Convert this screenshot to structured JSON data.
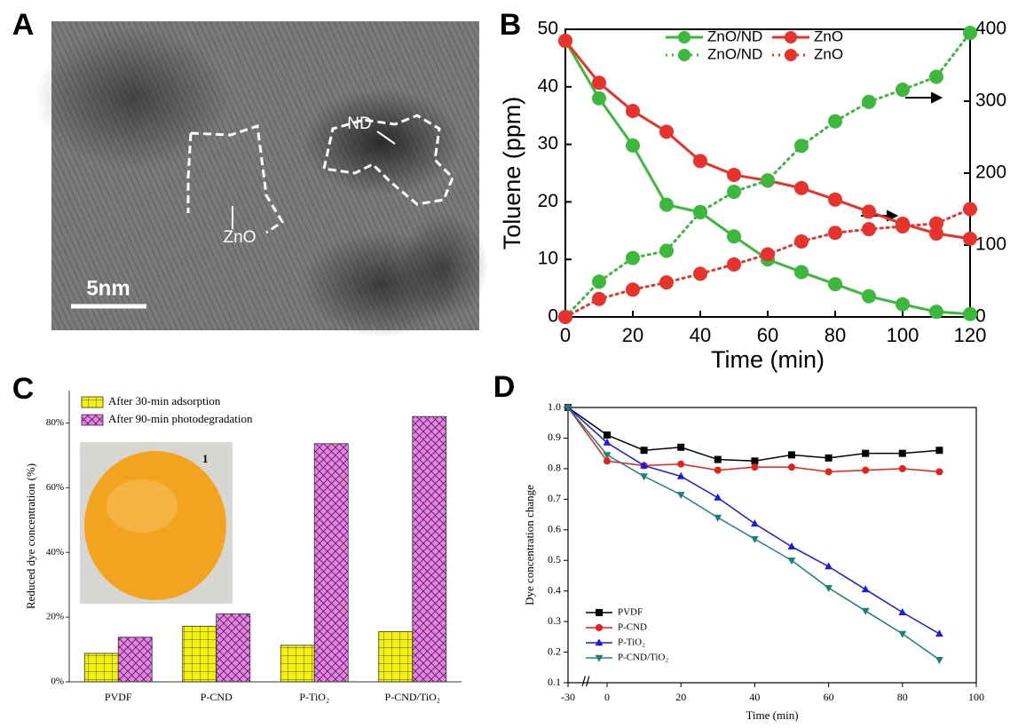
{
  "panel_labels": [
    "A",
    "B",
    "C",
    "D"
  ],
  "image": {
    "labels": [
      "ND",
      "ZnO"
    ],
    "scale_bar": "5nm"
  },
  "chart_data": [
    {
      "type": "line",
      "xlabel": "Time (min)",
      "ylabel": "Toluene (ppm)",
      "x": [
        0,
        10,
        20,
        30,
        40,
        50,
        60,
        70,
        80,
        90,
        100,
        110,
        120
      ],
      "xlim": [
        0,
        120
      ],
      "xticks": [
        0,
        20,
        40,
        60,
        80,
        100,
        120
      ],
      "ylim": [
        0,
        50
      ],
      "yticks": [
        0,
        10,
        20,
        30,
        40,
        50
      ],
      "y2lim": [
        0,
        400
      ],
      "y2ticks": [
        0,
        100,
        200,
        300,
        400
      ],
      "series": [
        {
          "name": "ZnO/ND",
          "color": "#3cb83c",
          "line_style": "solid",
          "values": [
            48,
            38,
            29.8,
            19.5,
            18.2,
            14,
            10,
            7.8,
            5.7,
            3.6,
            2.2,
            0.9,
            0.5
          ]
        },
        {
          "name": "ZnO",
          "color": "#e8322c",
          "line_style": "solid",
          "values": [
            48,
            40.7,
            35.8,
            32.2,
            27.1,
            24.7,
            23.7,
            22.4,
            20.4,
            18.3,
            16.2,
            14.5,
            13.6
          ]
        },
        {
          "name": "ZnO/ND",
          "color": "#3cb83c",
          "line_style": "dotted",
          "axis": "y2",
          "values": [
            0,
            49,
            82,
            92,
            146,
            174,
            190,
            238,
            272,
            299,
            316,
            334,
            395
          ]
        },
        {
          "name": "ZnO",
          "color": "#e8322c",
          "line_style": "dotted",
          "axis": "y2",
          "values": [
            0,
            25,
            38,
            48,
            60,
            73,
            87,
            105,
            117,
            122,
            126,
            130,
            150
          ]
        }
      ]
    },
    {
      "type": "bar",
      "ylabel": "Reduced dye concentration (%)",
      "inset_label": "1",
      "categories": [
        "PVDF",
        "P-CND",
        "P-TiO₂",
        "P-CND/TiO₂"
      ],
      "ylim": [
        0,
        90
      ],
      "yticks": [
        {
          "value": 0,
          "label": "0%"
        },
        {
          "value": 20,
          "label": "20%"
        },
        {
          "value": 40,
          "label": "40%"
        },
        {
          "value": 60,
          "label": "60%"
        },
        {
          "value": 80,
          "label": "80%"
        }
      ],
      "series": [
        {
          "name": "After 30-min adsorption",
          "color": "#f4f20a",
          "pattern": "grid",
          "values": [
            8.8,
            17.2,
            11.3,
            15.5
          ]
        },
        {
          "name": "After 90-min photodegradation",
          "color": "#f07af0",
          "pattern": "crosshatch",
          "values": [
            13.8,
            21,
            73.6,
            82
          ]
        }
      ]
    },
    {
      "type": "line",
      "xlabel": "Time (min)",
      "ylabel": "Dye concentration change",
      "x_break": true,
      "x": [
        -30,
        0,
        10,
        20,
        30,
        40,
        50,
        60,
        70,
        80,
        90
      ],
      "xlim": [
        -30,
        100
      ],
      "xticks": [
        -30,
        0,
        20,
        40,
        60,
        80,
        100
      ],
      "ylim": [
        0.1,
        1
      ],
      "yticks": [
        0.1,
        0.2,
        0.3,
        0.4,
        0.5,
        0.6,
        0.7,
        0.8,
        0.9,
        {
          "value": 1,
          "label": "1.0"
        }
      ],
      "series": [
        {
          "name": "PVDF",
          "color": "#000000",
          "marker": "square",
          "values": [
            1,
            0.91,
            0.86,
            0.87,
            0.83,
            0.825,
            0.845,
            0.835,
            0.85,
            0.85,
            0.86
          ]
        },
        {
          "name": "P-CND",
          "color": "#e8201c",
          "marker": "circle",
          "values": [
            1,
            0.825,
            0.81,
            0.815,
            0.795,
            0.805,
            0.805,
            0.79,
            0.795,
            0.8,
            0.79
          ]
        },
        {
          "name": "P-TiO₂",
          "color": "#1a1ae8",
          "marker": "triangle",
          "values": [
            1,
            0.885,
            0.81,
            0.775,
            0.705,
            0.62,
            0.545,
            0.48,
            0.405,
            0.33,
            0.26
          ]
        },
        {
          "name": "P-CND/TiO₂",
          "color": "#1e7f7a",
          "marker": "triangle-down",
          "values": [
            1,
            0.845,
            0.775,
            0.715,
            0.64,
            0.57,
            0.5,
            0.41,
            0.335,
            0.26,
            0.175
          ]
        }
      ]
    }
  ]
}
